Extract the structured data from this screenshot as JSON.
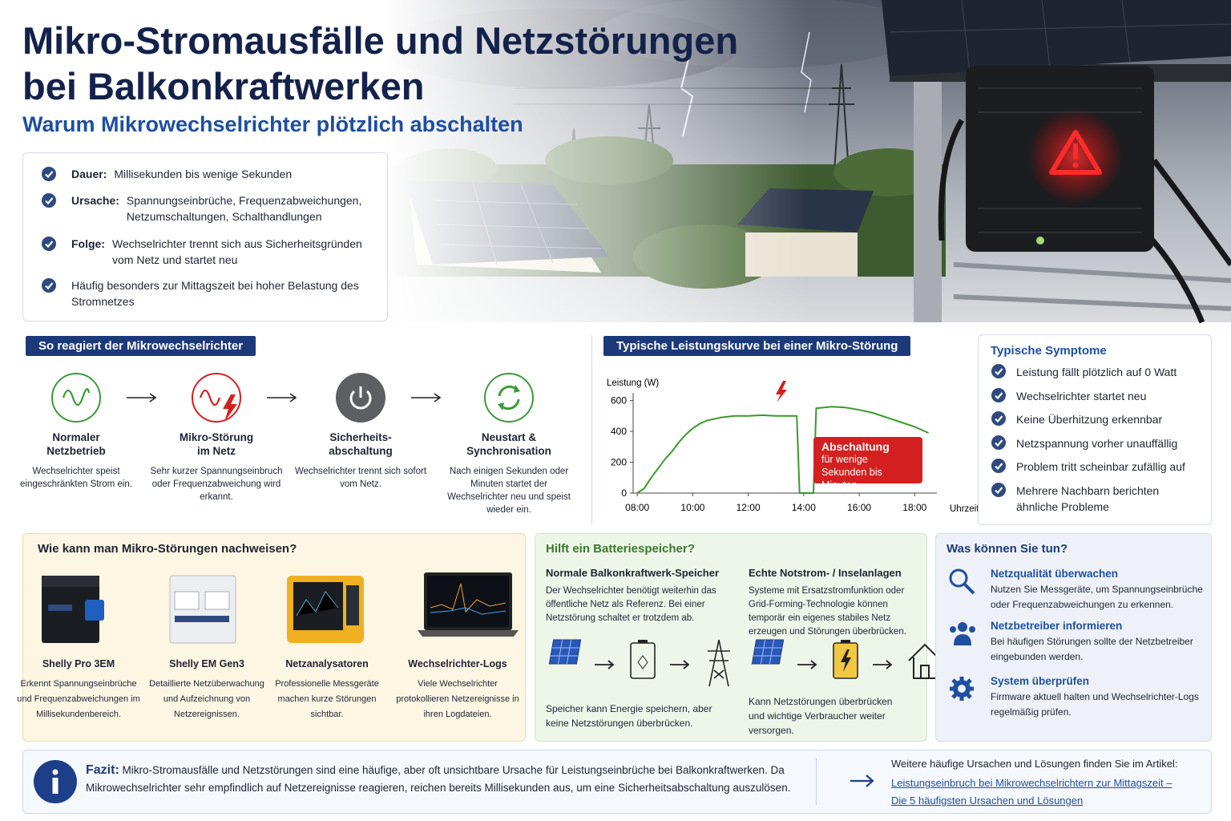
{
  "header": {
    "title_line1": "Mikro-Stromausfälle und Netzstörungen",
    "title_line2": "bei Balkonkraftwerken",
    "subtitle": "Warum Mikrowechselrichter plötzlich abschalten"
  },
  "facts": [
    {
      "label": "Dauer:",
      "text": "Millisekunden bis wenige Sekunden"
    },
    {
      "label": "Ursache:",
      "text": "Spannungseinbrüche, Frequenzabweichungen, Netzumschaltungen, Schalthandlungen"
    },
    {
      "label": "Folge:",
      "text": "Wechselrichter trennt sich aus Sicherheitsgründen vom Netz und startet neu"
    },
    {
      "text": "Häufig besonders zur Mittagszeit bei hoher Belastung des Stromnetzes"
    }
  ],
  "reaction": {
    "title": "So reagiert der Mikrowechselrichter",
    "steps": [
      {
        "title": "Normaler Netzbetrieb",
        "text": "Wechselrichter speist eingeschränkten Strom ein."
      },
      {
        "title": "Mikro-Störung im Netz",
        "text": "Sehr kurzer Spannungseinbruch oder Frequenzabweichung wird erkannt."
      },
      {
        "title": "Sicherheits-abschaltung",
        "text": "Wechselrichter trennt sich sofort vom Netz."
      },
      {
        "title": "Neustart & Synchronisation",
        "text": "Nach einigen Sekunden oder Minuten startet der Wechselrichter neu und speist wieder ein."
      }
    ]
  },
  "chart_data": {
    "type": "line",
    "title": "Typische Leistungskurve bei einer Mikro-Störung",
    "y_label": "Leistung (W)",
    "x_label": "Uhrzeit",
    "color": "#3a9a2a",
    "x": [
      8,
      8.25,
      8.5,
      8.75,
      9,
      9.25,
      9.5,
      9.75,
      10,
      10.25,
      10.5,
      11,
      11.5,
      12,
      12.5,
      13,
      13.5,
      13.75,
      13.85,
      14.35,
      14.45,
      15,
      15.5,
      16,
      16.5,
      17,
      17.5,
      18,
      18.5
    ],
    "values": [
      0,
      30,
      100,
      160,
      220,
      270,
      330,
      380,
      420,
      450,
      470,
      490,
      500,
      500,
      505,
      500,
      500,
      500,
      0,
      0,
      550,
      560,
      555,
      540,
      520,
      490,
      460,
      430,
      390
    ],
    "xlim": [
      7.85,
      18.8
    ],
    "xticks": [
      {
        "value": 8,
        "label": "08:00"
      },
      {
        "value": 10,
        "label": "10:00"
      },
      {
        "value": 12,
        "label": "12:00"
      },
      {
        "value": 14,
        "label": "14:00"
      },
      {
        "value": 16,
        "label": "16:00"
      },
      {
        "value": 18,
        "label": "18:00"
      }
    ],
    "ylim": [
      0,
      650
    ],
    "yticks": [
      0,
      200,
      400,
      600
    ],
    "grid": false,
    "annotation": {
      "title": "Abschaltung",
      "text": "für wenige Sekunden bis Minuten"
    }
  },
  "symptoms": {
    "title": "Typische Symptome",
    "items": [
      "Leistung fällt plötzlich auf 0 Watt",
      "Wechselrichter startet neu",
      "Keine Überhitzung erkennbar",
      "Netzspannung vorher unauffällig",
      "Problem tritt scheinbar zufällig auf",
      "Mehrere Nachbarn berichten ähnliche Probleme"
    ]
  },
  "detection": {
    "title": "Wie kann man Mikro-Störungen nachweisen?",
    "items": [
      {
        "name": "Shelly Pro 3EM",
        "text": "Erkennt Spannungseinbrüche und Frequenzabweichungen im Millisekundenbereich."
      },
      {
        "name": "Shelly EM Gen3",
        "text": "Detaillierte Netzüberwachung und Aufzeichnung von Netzereignissen."
      },
      {
        "name": "Netzanalysatoren",
        "text": "Professionelle Messgeräte machen kurze Störungen sichtbar."
      },
      {
        "name": "Wechselrichter-Logs",
        "text": "Viele Wechselrichter protokollieren Netzereignisse in ihren Logdateien."
      }
    ]
  },
  "battery": {
    "title": "Hilft ein Batteriespeicher?",
    "columns": [
      {
        "title": "Normale Balkonkraftwerk-Speicher",
        "text": "Der Wechselrichter benötigt weiterhin das öffentliche Netz als Referenz. Bei einer Netzstörung schaltet er trotzdem ab.",
        "caption": "Speicher kann Energie speichern, aber keine Netzstörungen überbrücken."
      },
      {
        "title": "Echte Notstrom- / Inselanlagen",
        "text": "Systeme mit Ersatzstromfunktion oder Grid-Forming-Technologie können temporär ein eigenes stabiles Netz erzeugen und Störungen überbrücken.",
        "caption": "Kann Netzstörungen überbrücken und wichtige Verbraucher weiter versorgen."
      }
    ]
  },
  "actions": {
    "title": "Was können Sie tun?",
    "items": [
      {
        "title": "Netzqualität überwachen",
        "text": "Nutzen Sie Messgeräte, um Spannungseinbrüche oder Frequenzabweichungen zu erkennen."
      },
      {
        "title": "Netzbetreiber informieren",
        "text": "Bei häufigen Störungen sollte der Netzbetreiber eingebunden werden."
      },
      {
        "title": "System überprüfen",
        "text": "Firmware aktuell halten und Wechselrichter-Logs regelmäßig prüfen."
      }
    ]
  },
  "conclusion": {
    "label": "Fazit:",
    "text": "Mikro-Stromausfälle und Netzstörungen sind eine häufige, aber oft unsichtbare Ursache für Leistungseinbrüche bei Balkonkraftwerken. Da Mikrowechselrichter sehr empfindlich auf Netzereignisse reagieren, reichen bereits Millisekunden aus, um eine Sicherheitsabschaltung auszulösen.",
    "more_intro": "Weitere häufige Ursachen und Lösungen finden Sie im Artikel:",
    "link": "Leistungseinbruch bei Mikrowechselrichtern zur Mittagszeit – Die 5 häufigsten Ursachen und Lösungen"
  }
}
